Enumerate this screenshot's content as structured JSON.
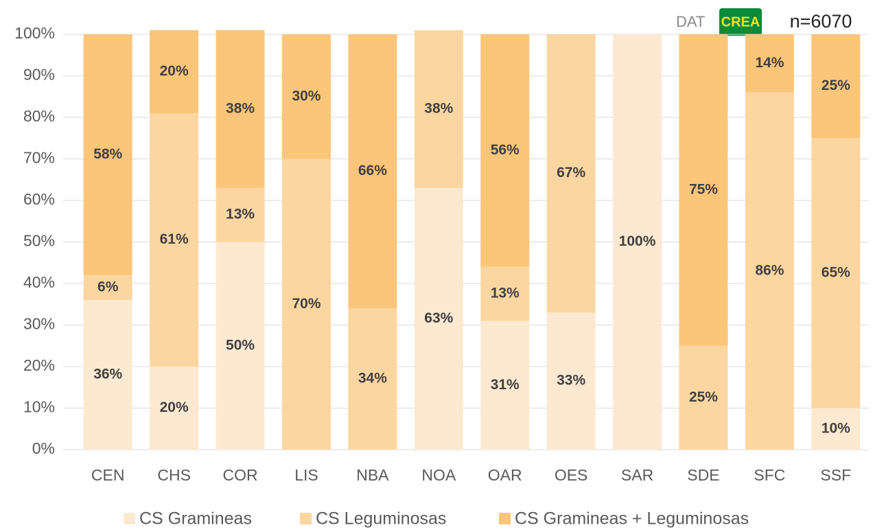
{
  "chart_data": {
    "type": "stacked_bar",
    "annotations": [
      "DAT",
      "CREA",
      "n=6070"
    ],
    "categories": [
      "CEN",
      "CHS",
      "COR",
      "LIS",
      "NBA",
      "NOA",
      "OAR",
      "OES",
      "SAR",
      "SDE",
      "SFC",
      "SSF"
    ],
    "series": [
      {
        "name": "CS Gramineas",
        "color": "#fde9d1",
        "values": [
          36,
          20,
          50,
          0,
          0,
          63,
          31,
          33,
          100,
          0,
          0,
          10
        ],
        "value_labels": [
          "36%",
          "20%",
          "50%",
          null,
          null,
          "63%",
          "31%",
          "33%",
          "100%",
          null,
          null,
          "10%"
        ]
      },
      {
        "name": "CS Leguminosas",
        "color": "#fcd6a1",
        "values": [
          6,
          61,
          13,
          70,
          34,
          38,
          13,
          67,
          0,
          25,
          86,
          65
        ],
        "value_labels": [
          "6%",
          "61%",
          "13%",
          "70%",
          "34%",
          "38%",
          "13%",
          "67%",
          null,
          "25%",
          "86%",
          "65%"
        ]
      },
      {
        "name": "CS Gramineas + Leguminosas",
        "color": "#fbc57a",
        "values": [
          58,
          20,
          38,
          30,
          66,
          0,
          56,
          0,
          0,
          75,
          14,
          25
        ],
        "value_labels": [
          "58%",
          "20%",
          "38%",
          "30%",
          "66%",
          null,
          "56%",
          null,
          null,
          "75%",
          "14%",
          "25%"
        ]
      }
    ],
    "ylim": [
      0,
      100
    ],
    "yticks": [
      {
        "value": 0,
        "label": "0%"
      },
      {
        "value": 10,
        "label": "10%"
      },
      {
        "value": 20,
        "label": "20%"
      },
      {
        "value": 30,
        "label": "30%"
      },
      {
        "value": 40,
        "label": "40%"
      },
      {
        "value": 50,
        "label": "50%"
      },
      {
        "value": 60,
        "label": "60%"
      },
      {
        "value": 70,
        "label": "70%"
      },
      {
        "value": 80,
        "label": "80%"
      },
      {
        "value": 90,
        "label": "90%"
      },
      {
        "value": 100,
        "label": "100%"
      }
    ],
    "grid": true,
    "legend": "bottom"
  }
}
